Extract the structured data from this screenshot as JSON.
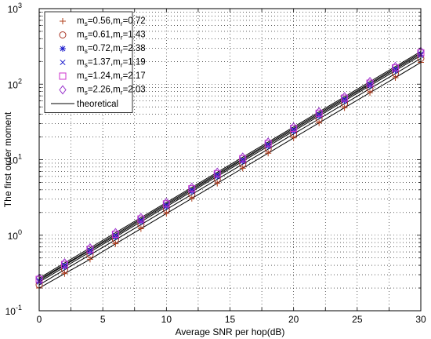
{
  "chart_data": {
    "type": "scatter",
    "xlabel": "Average SNR per hop(dB)",
    "ylabel": "The first order moment",
    "xlim": [
      0,
      30
    ],
    "ylim": [
      0.1,
      1000
    ],
    "yscale": "log",
    "grid": true,
    "legend_placement": "top-left",
    "x_ticks": [
      "0",
      "5",
      "10",
      "15",
      "20",
      "25",
      "30"
    ],
    "y_ticks": [
      {
        "base": "10",
        "exp": "-1"
      },
      {
        "base": "10",
        "exp": "0"
      },
      {
        "base": "10",
        "exp": "1"
      },
      {
        "base": "10",
        "exp": "2"
      },
      {
        "base": "10",
        "exp": "3"
      }
    ],
    "x": [
      0,
      2,
      4,
      6,
      8,
      10,
      12,
      14,
      16,
      18,
      20,
      22,
      24,
      26,
      28,
      30
    ],
    "series": [
      {
        "name": "m_s=0.56,m_r=0.72",
        "label_parts": {
          "a": "0.56",
          "b": "0.72"
        },
        "marker": "plus",
        "color": "#b0401c",
        "values": [
          0.2,
          0.31,
          0.48,
          0.77,
          1.22,
          1.94,
          3.07,
          4.87,
          7.71,
          12.2,
          19.4,
          30.7,
          48.7,
          77.1,
          122,
          194
        ]
      },
      {
        "name": "m_s=0.61,m_r=1.43",
        "label_parts": {
          "a": "0.61",
          "b": "1.43"
        },
        "marker": "circle",
        "color": "#a83222",
        "values": [
          0.22,
          0.35,
          0.55,
          0.87,
          1.38,
          2.19,
          3.47,
          5.5,
          8.72,
          13.8,
          21.9,
          34.7,
          55.0,
          87.2,
          138,
          219
        ]
      },
      {
        "name": "m_s=0.72,m_r=2.38",
        "label_parts": {
          "a": "0.72",
          "b": "2.38"
        },
        "marker": "star",
        "color": "#1a1acc",
        "values": [
          0.24,
          0.38,
          0.6,
          0.95,
          1.51,
          2.39,
          3.79,
          6.01,
          9.52,
          15.1,
          23.9,
          37.9,
          60.1,
          95.2,
          151,
          239
        ]
      },
      {
        "name": "m_s=1.37,m_r=1.19",
        "label_parts": {
          "a": "1.37",
          "b": "1.19"
        },
        "marker": "x",
        "color": "#1a1acc",
        "values": [
          0.25,
          0.4,
          0.63,
          0.99,
          1.58,
          2.5,
          3.96,
          6.28,
          9.95,
          15.8,
          25.0,
          39.6,
          62.8,
          99.5,
          158,
          250
        ]
      },
      {
        "name": "m_s=1.24,m_r=2.17",
        "label_parts": {
          "a": "1.24",
          "b": "2.17"
        },
        "marker": "square",
        "color": "#cc33cc",
        "values": [
          0.26,
          0.41,
          0.65,
          1.03,
          1.64,
          2.6,
          4.12,
          6.53,
          10.3,
          16.4,
          26.0,
          41.2,
          65.3,
          103,
          164,
          260
        ]
      },
      {
        "name": "m_s=2.26,m_r=2.03",
        "label_parts": {
          "a": "2.26",
          "b": "2.03"
        },
        "marker": "diamond",
        "color": "#9933cc",
        "values": [
          0.27,
          0.43,
          0.68,
          1.08,
          1.71,
          2.71,
          4.3,
          6.81,
          10.8,
          17.1,
          27.1,
          43.0,
          68.1,
          108,
          171,
          271
        ]
      }
    ],
    "theoretical": {
      "name": "theoretical",
      "color": "#000000"
    }
  }
}
